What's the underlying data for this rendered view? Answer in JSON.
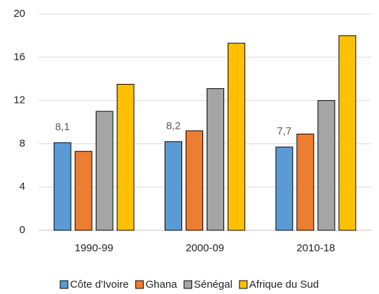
{
  "chart_data": {
    "type": "bar",
    "categories": [
      "1990-99",
      "2000-09",
      "2010-18"
    ],
    "series": [
      {
        "name": "Côte d'Ivoire",
        "color": "#5b9bd5",
        "values": [
          8.1,
          8.2,
          7.7
        ],
        "value_labels": [
          "8,1",
          "8,2",
          "7,7"
        ]
      },
      {
        "name": "Ghana",
        "color": "#ed7d31",
        "values": [
          7.3,
          9.2,
          8.9
        ]
      },
      {
        "name": "Sénégal",
        "color": "#a5a5a5",
        "values": [
          11.0,
          13.1,
          12.0
        ]
      },
      {
        "name": "Afrique du Sud",
        "color": "#ffc000",
        "values": [
          13.5,
          17.3,
          18.0
        ]
      }
    ],
    "ylim": [
      0,
      20
    ],
    "yticks": [
      0,
      4,
      8,
      12,
      16,
      20
    ],
    "grid": true,
    "legend": "bottom"
  }
}
